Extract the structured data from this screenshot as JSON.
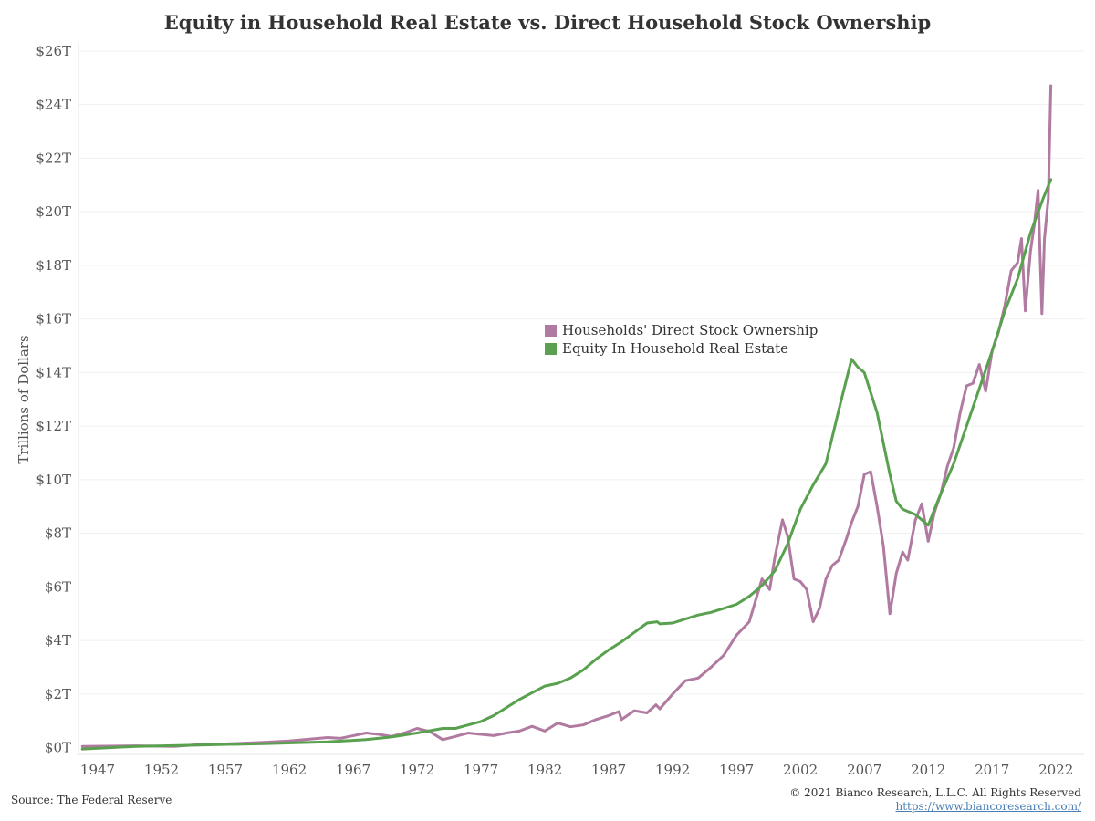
{
  "header": {
    "title": "Equity in Household Real Estate vs. Direct Household Stock Ownership"
  },
  "footer": {
    "source": "Source: The Federal Reserve",
    "copyright": "© 2021 Bianco Research, L.L.C. All Rights Reserved",
    "url": "https://www.biancoresearch.com/"
  },
  "legend": {
    "stock_label": "Households' Direct Stock Ownership",
    "equity_label": "Equity In Household Real Estate"
  },
  "colors": {
    "stock": "#b07aa1",
    "equity": "#59a14f"
  },
  "chart_data": {
    "type": "line",
    "title": "Equity in Household Real Estate vs. Direct Household Stock Ownership",
    "xlabel": "",
    "ylabel": "Trillions of Dollars",
    "xlim": [
      1945.5,
      2024.2
    ],
    "ylim": [
      -0.25,
      26.3
    ],
    "x_ticks": [
      1947,
      1952,
      1957,
      1962,
      1967,
      1972,
      1977,
      1982,
      1987,
      1992,
      1997,
      2002,
      2007,
      2012,
      2017,
      2022
    ],
    "y_ticks": [
      0,
      2,
      4,
      6,
      8,
      10,
      12,
      14,
      16,
      18,
      20,
      22,
      24,
      26
    ],
    "y_tick_labels": [
      "$0T",
      "$2T",
      "$4T",
      "$6T",
      "$8T",
      "$10T",
      "$12T",
      "$14T",
      "$16T",
      "$18T",
      "$20T",
      "$22T",
      "$24T",
      "$26T"
    ],
    "grid": true,
    "legend_position": "center",
    "series": [
      {
        "name": "Households' Direct Stock Ownership",
        "color": "#b07aa1",
        "points": [
          [
            1945.8,
            0.05
          ],
          [
            1950,
            0.07
          ],
          [
            1953,
            0.05
          ],
          [
            1955,
            0.12
          ],
          [
            1957,
            0.14
          ],
          [
            1960,
            0.2
          ],
          [
            1962,
            0.25
          ],
          [
            1965,
            0.38
          ],
          [
            1966,
            0.35
          ],
          [
            1968,
            0.55
          ],
          [
            1969,
            0.5
          ],
          [
            1970,
            0.42
          ],
          [
            1971,
            0.55
          ],
          [
            1972,
            0.72
          ],
          [
            1973,
            0.6
          ],
          [
            1974,
            0.3
          ],
          [
            1975,
            0.42
          ],
          [
            1976,
            0.55
          ],
          [
            1977,
            0.5
          ],
          [
            1978,
            0.45
          ],
          [
            1979,
            0.55
          ],
          [
            1980,
            0.62
          ],
          [
            1981,
            0.8
          ],
          [
            1982,
            0.62
          ],
          [
            1983,
            0.92
          ],
          [
            1984,
            0.78
          ],
          [
            1985,
            0.85
          ],
          [
            1986,
            1.05
          ],
          [
            1987,
            1.2
          ],
          [
            1987.8,
            1.35
          ],
          [
            1988,
            1.05
          ],
          [
            1989,
            1.38
          ],
          [
            1990,
            1.3
          ],
          [
            1990.7,
            1.6
          ],
          [
            1991,
            1.45
          ],
          [
            1992,
            2.0
          ],
          [
            1993,
            2.5
          ],
          [
            1994,
            2.6
          ],
          [
            1995,
            3.0
          ],
          [
            1996,
            3.45
          ],
          [
            1997,
            4.2
          ],
          [
            1998,
            4.7
          ],
          [
            1999,
            6.3
          ],
          [
            1999.6,
            5.9
          ],
          [
            2000,
            7.1
          ],
          [
            2000.6,
            8.5
          ],
          [
            2001,
            7.9
          ],
          [
            2001.5,
            6.3
          ],
          [
            2002,
            6.2
          ],
          [
            2002.5,
            5.9
          ],
          [
            2003,
            4.7
          ],
          [
            2003.5,
            5.2
          ],
          [
            2004,
            6.3
          ],
          [
            2004.5,
            6.8
          ],
          [
            2005,
            7.0
          ],
          [
            2005.6,
            7.8
          ],
          [
            2006,
            8.4
          ],
          [
            2006.5,
            9.0
          ],
          [
            2007,
            10.2
          ],
          [
            2007.5,
            10.3
          ],
          [
            2008,
            9.0
          ],
          [
            2008.5,
            7.5
          ],
          [
            2009,
            5.0
          ],
          [
            2009.5,
            6.5
          ],
          [
            2010,
            7.3
          ],
          [
            2010.4,
            7.0
          ],
          [
            2011,
            8.5
          ],
          [
            2011.5,
            9.1
          ],
          [
            2012,
            7.7
          ],
          [
            2012.5,
            8.8
          ],
          [
            2013,
            9.5
          ],
          [
            2013.5,
            10.5
          ],
          [
            2014,
            11.2
          ],
          [
            2014.5,
            12.5
          ],
          [
            2015,
            13.5
          ],
          [
            2015.5,
            13.6
          ],
          [
            2016,
            14.3
          ],
          [
            2016.5,
            13.3
          ],
          [
            2017,
            14.8
          ],
          [
            2017.5,
            15.5
          ],
          [
            2018,
            16.5
          ],
          [
            2018.5,
            17.8
          ],
          [
            2019,
            18.1
          ],
          [
            2019.3,
            19.0
          ],
          [
            2019.6,
            16.3
          ],
          [
            2020,
            18.5
          ],
          [
            2020.3,
            19.5
          ],
          [
            2020.6,
            20.8
          ],
          [
            2020.9,
            16.2
          ],
          [
            2021.1,
            19.0
          ],
          [
            2021.4,
            20.5
          ],
          [
            2021.6,
            24.7
          ]
        ]
      },
      {
        "name": "Equity In Household Real Estate",
        "color": "#59a14f",
        "points": [
          [
            1945.8,
            -0.05
          ],
          [
            1950,
            0.05
          ],
          [
            1955,
            0.1
          ],
          [
            1960,
            0.15
          ],
          [
            1965,
            0.22
          ],
          [
            1968,
            0.3
          ],
          [
            1970,
            0.4
          ],
          [
            1972,
            0.55
          ],
          [
            1974,
            0.72
          ],
          [
            1975,
            0.72
          ],
          [
            1976,
            0.85
          ],
          [
            1977,
            0.98
          ],
          [
            1978,
            1.2
          ],
          [
            1979,
            1.5
          ],
          [
            1980,
            1.8
          ],
          [
            1981,
            2.05
          ],
          [
            1982,
            2.3
          ],
          [
            1983,
            2.4
          ],
          [
            1984,
            2.6
          ],
          [
            1985,
            2.9
          ],
          [
            1986,
            3.3
          ],
          [
            1987,
            3.65
          ],
          [
            1988,
            3.95
          ],
          [
            1989,
            4.3
          ],
          [
            1990,
            4.65
          ],
          [
            1990.8,
            4.7
          ],
          [
            1991,
            4.62
          ],
          [
            1992,
            4.65
          ],
          [
            1993,
            4.8
          ],
          [
            1994,
            4.95
          ],
          [
            1995,
            5.05
          ],
          [
            1996,
            5.2
          ],
          [
            1997,
            5.35
          ],
          [
            1998,
            5.65
          ],
          [
            1999,
            6.05
          ],
          [
            2000,
            6.6
          ],
          [
            2001,
            7.6
          ],
          [
            2002,
            8.9
          ],
          [
            2003,
            9.8
          ],
          [
            2004,
            10.6
          ],
          [
            2005,
            12.6
          ],
          [
            2006,
            14.5
          ],
          [
            2006.5,
            14.2
          ],
          [
            2007,
            14.0
          ],
          [
            2008,
            12.5
          ],
          [
            2009,
            10.2
          ],
          [
            2009.5,
            9.2
          ],
          [
            2010,
            8.9
          ],
          [
            2011,
            8.7
          ],
          [
            2012,
            8.3
          ],
          [
            2013,
            9.5
          ],
          [
            2014,
            10.6
          ],
          [
            2015,
            12.0
          ],
          [
            2016,
            13.4
          ],
          [
            2017,
            14.8
          ],
          [
            2018,
            16.3
          ],
          [
            2019,
            17.5
          ],
          [
            2020,
            19.2
          ],
          [
            2021,
            20.5
          ],
          [
            2021.6,
            21.2
          ]
        ]
      }
    ]
  }
}
